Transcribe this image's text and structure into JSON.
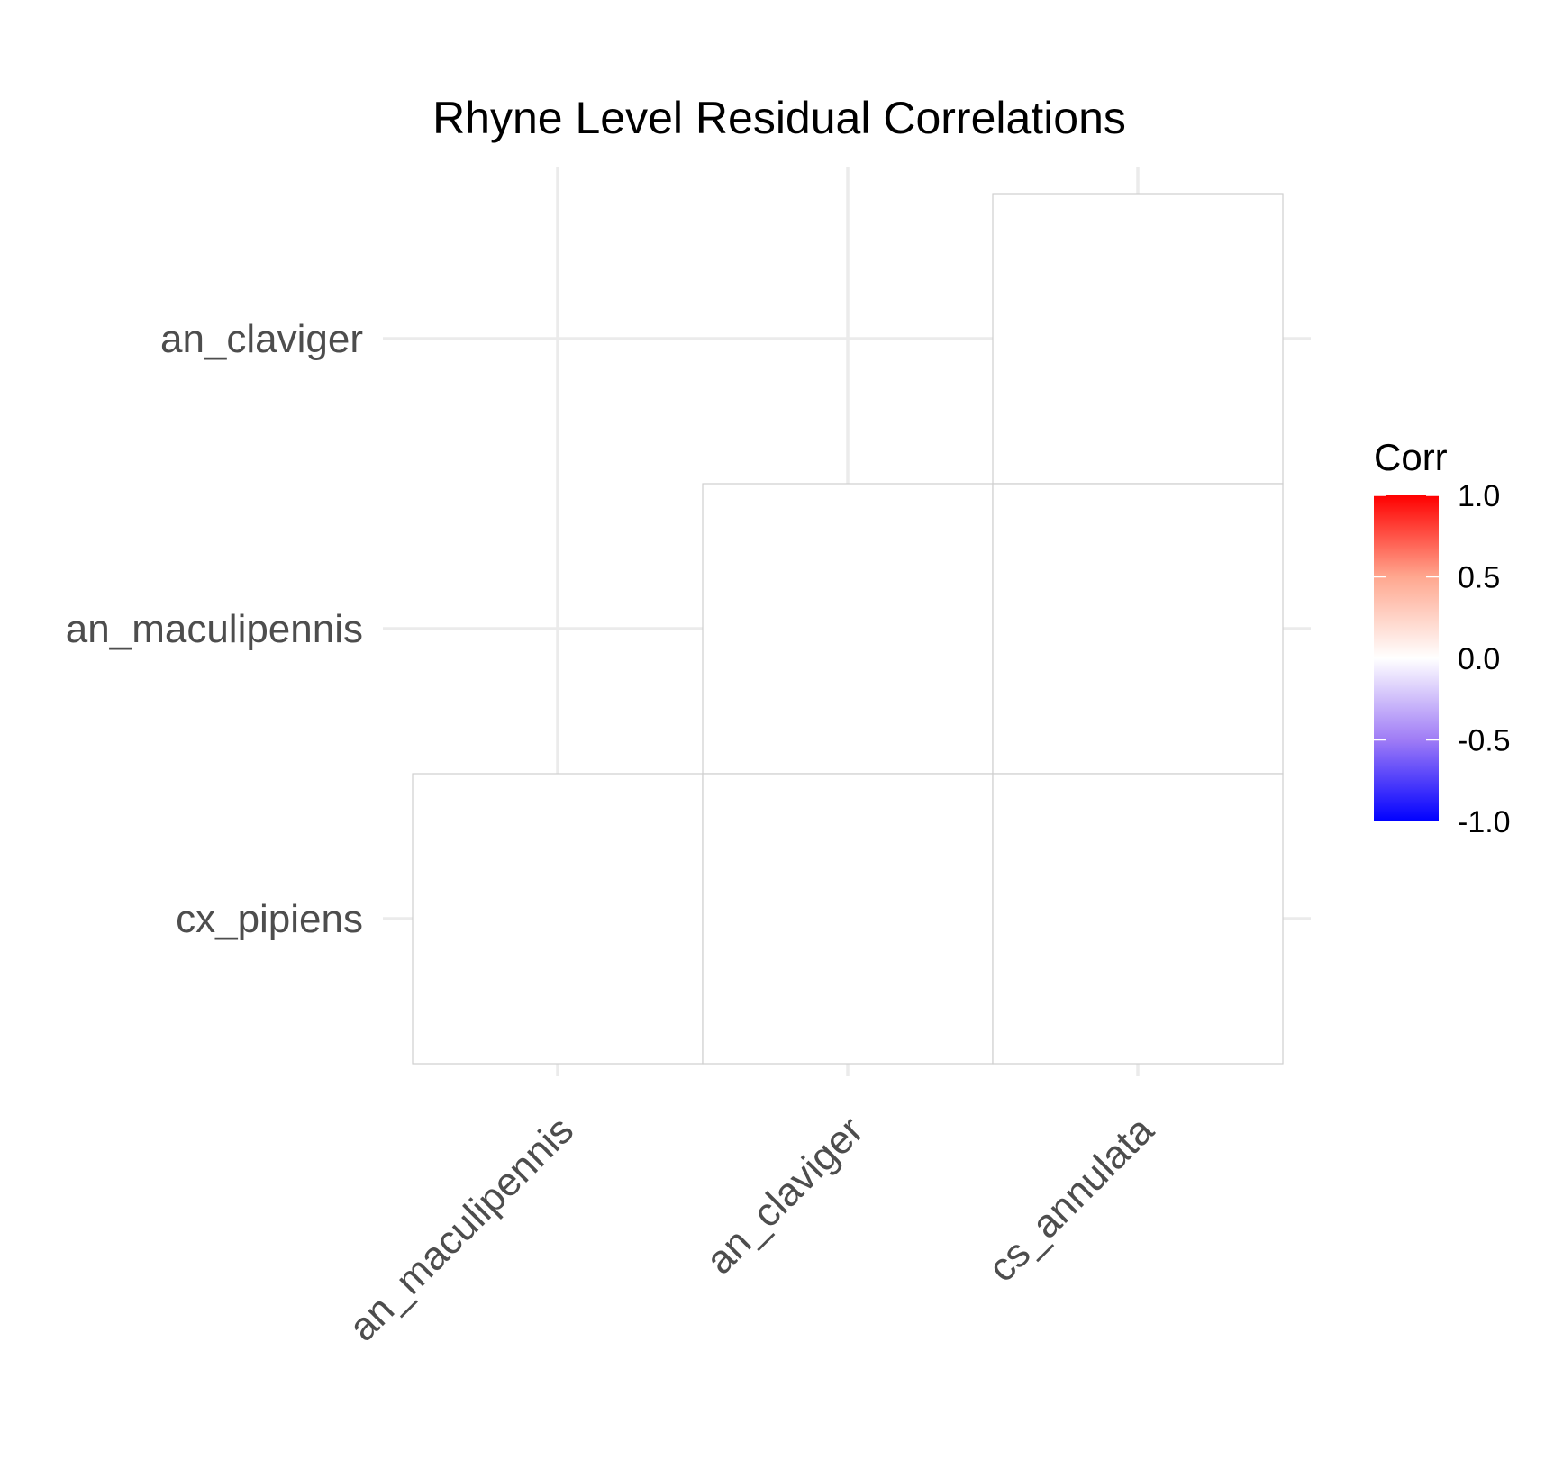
{
  "chart_data": {
    "type": "heatmap",
    "title": "Rhyne Level Residual Correlations",
    "x_categories": [
      "an_maculipennis",
      "an_claviger",
      "cs_annulata"
    ],
    "y_categories": [
      "an_claviger",
      "an_maculipennis",
      "cx_pipiens"
    ],
    "cells": [
      {
        "x": "cs_annulata",
        "y": "an_claviger",
        "value": 0.0
      },
      {
        "x": "an_claviger",
        "y": "an_maculipennis",
        "value": 0.0
      },
      {
        "x": "cs_annulata",
        "y": "an_maculipennis",
        "value": 0.0
      },
      {
        "x": "an_maculipennis",
        "y": "cx_pipiens",
        "value": 0.0
      },
      {
        "x": "an_claviger",
        "y": "cx_pipiens",
        "value": 0.0
      },
      {
        "x": "cs_annulata",
        "y": "cx_pipiens",
        "value": 0.0
      }
    ],
    "legend": {
      "title": "Corr",
      "limits": [
        -1.0,
        1.0
      ],
      "breaks": [
        1.0,
        0.5,
        0.0,
        -0.5,
        -1.0
      ],
      "labels": [
        "1.0",
        "0.5",
        "0.0",
        "-0.5",
        "-1.0"
      ],
      "low_color": "#0000ff",
      "mid_color": "#ffffff",
      "high_color": "#ff0000",
      "position": "right"
    },
    "grid": true
  }
}
